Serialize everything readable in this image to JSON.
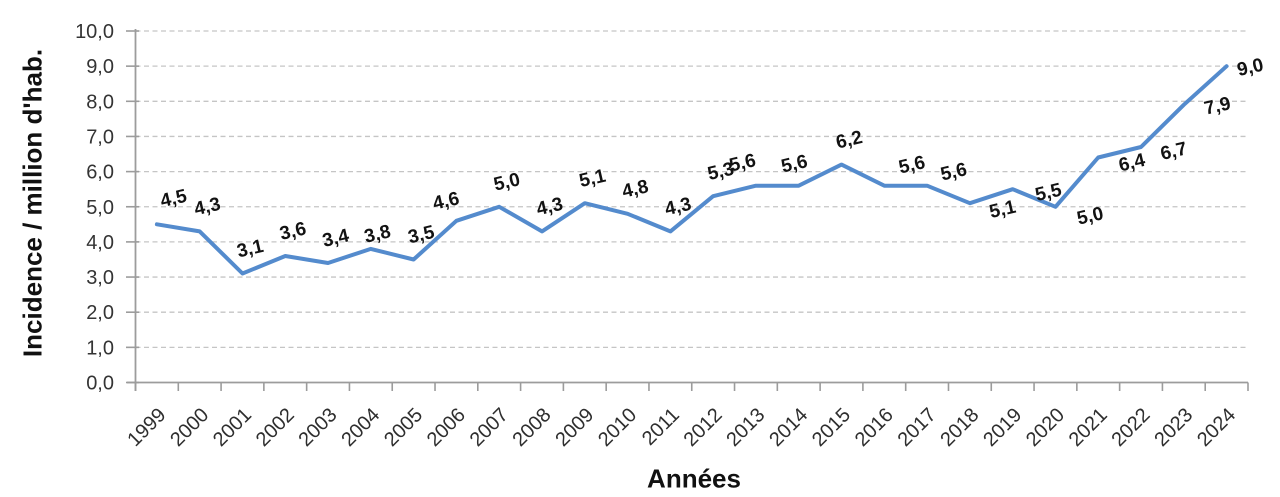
{
  "chart_data": {
    "type": "line",
    "title": "",
    "xlabel": "Années",
    "ylabel": "Incidence / million d'hab.",
    "categories": [
      "1999",
      "2000",
      "2001",
      "2002",
      "2003",
      "2004",
      "2005",
      "2006",
      "2007",
      "2008",
      "2009",
      "2010",
      "2011",
      "2012",
      "2013",
      "2014",
      "2015",
      "2016",
      "2017",
      "2018",
      "2019",
      "2020",
      "2021",
      "2022",
      "2023",
      "2024"
    ],
    "values": [
      4.5,
      4.3,
      3.1,
      3.6,
      3.4,
      3.8,
      3.5,
      4.6,
      5.0,
      4.3,
      5.1,
      4.8,
      4.3,
      5.3,
      5.6,
      5.6,
      6.2,
      5.6,
      5.6,
      5.1,
      5.5,
      5.0,
      6.4,
      6.7,
      7.9,
      9.0
    ],
    "point_labels": [
      "4,5",
      "4,3",
      "3,1",
      "3,6",
      "3,4",
      "3,8",
      "3,5",
      "4,6",
      "5,0",
      "4,3",
      "5,1",
      "4,8",
      "4,3",
      "5,3",
      "5,6",
      "5,6",
      "6,2",
      "5,6",
      "5,6",
      "5,1",
      "5,5",
      "5,0",
      "6,4",
      "6,7",
      "7,9",
      "9,0"
    ],
    "ylim": [
      0,
      10
    ],
    "ytick_step": 1.0,
    "ytick_labels": [
      "0,0",
      "1,0",
      "2,0",
      "3,0",
      "4,0",
      "5,0",
      "6,0",
      "7,0",
      "8,0",
      "9,0",
      "10,0"
    ],
    "grid": "horizontal-dashed",
    "legend": "none",
    "line_color": "#548bcd",
    "grid_color": "#c5c5c5",
    "axis_color": "#9c9c9c",
    "point_label_color": "#121212",
    "tick_label_color": "#343434",
    "x_tick_label_rotation": -45,
    "point_label_rotation": -13,
    "point_label_default_offset": [
      9,
      -26
    ],
    "point_label_offsets": {
      "1999": [
        18,
        -27
      ],
      "2004": [
        8,
        -16
      ],
      "2006": [
        -9,
        -21
      ],
      "2013": [
        -12,
        -24
      ],
      "2014": [
        -3,
        -23
      ],
      "2016": [
        29,
        -22
      ],
      "2017": [
        28,
        -15
      ],
      "2018": [
        34,
        5
      ],
      "2019": [
        37,
        2
      ],
      "2020": [
        36,
        8
      ],
      "2021": [
        35,
        4
      ],
      "2022": [
        34,
        3
      ],
      "2023": [
        35,
        0
      ],
      "2024": [
        25,
        0
      ]
    }
  }
}
